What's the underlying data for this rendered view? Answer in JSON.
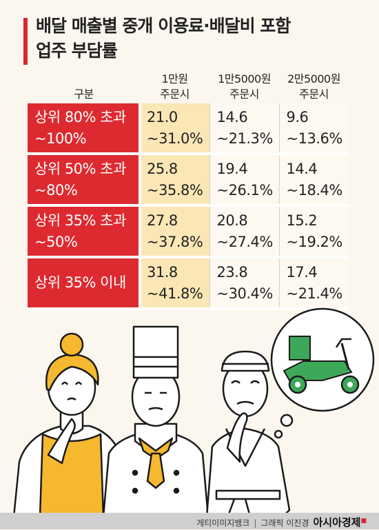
{
  "title": {
    "line1": "배달 매출별 중개 이용료·배달비 포함",
    "line2": "업주 부담률"
  },
  "chart_data": {
    "type": "table",
    "title": "배달 매출별 중개 이용료·배달비 포함 업주 부담률",
    "corner_label": "구분",
    "columns": [
      {
        "line1": "1만원",
        "line2": "주문시"
      },
      {
        "line1": "1만5000원",
        "line2": "주문시"
      },
      {
        "line1": "2만5000원",
        "line2": "주문시"
      }
    ],
    "rows": [
      {
        "label1": "상위 80% 초과",
        "label2": "~100%",
        "cells": [
          {
            "low": "21.0",
            "high": "~31.0%"
          },
          {
            "low": "14.6",
            "high": "~21.3%"
          },
          {
            "low": "9.6",
            "high": "~13.6%"
          }
        ]
      },
      {
        "label1": "상위 50% 초과",
        "label2": "~80%",
        "cells": [
          {
            "low": "25.8",
            "high": "~35.8%"
          },
          {
            "low": "19.4",
            "high": "~26.1%"
          },
          {
            "low": "14.4",
            "high": "~18.4%"
          }
        ]
      },
      {
        "label1": "상위 35% 초과",
        "label2": "~50%",
        "cells": [
          {
            "low": "27.8",
            "high": "~37.8%"
          },
          {
            "low": "20.8",
            "high": "~27.4%"
          },
          {
            "low": "15.2",
            "high": "~19.2%"
          }
        ]
      },
      {
        "label1": "상위 35% 이내",
        "label2": "",
        "cells": [
          {
            "low": "31.8",
            "high": "~41.8%"
          },
          {
            "low": "23.8",
            "high": "~30.4%"
          },
          {
            "low": "17.4",
            "high": "~21.4%"
          }
        ]
      }
    ]
  },
  "colors": {
    "accent_red": "#dd2a30",
    "highlight_column": "#fbe6b6",
    "background": "#fbf7ef",
    "scooter_green": "#3ea85a"
  },
  "illustration": {
    "icons": [
      "worried-woman-icon",
      "chef-icon",
      "sushi-chef-icon",
      "delivery-scooter-icon"
    ]
  },
  "footer": {
    "credit_photo": "게티이미지뱅크",
    "credit_graphic": "그래픽 이진경",
    "brand": "아시아경제"
  }
}
